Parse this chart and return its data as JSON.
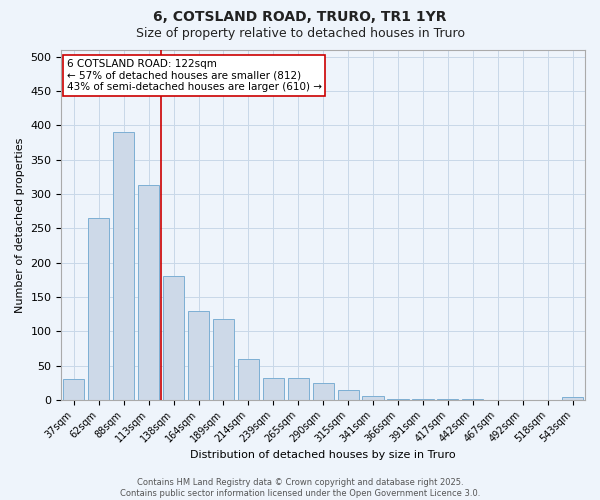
{
  "title1": "6, COTSLAND ROAD, TRURO, TR1 1YR",
  "title2": "Size of property relative to detached houses in Truro",
  "xlabel": "Distribution of detached houses by size in Truro",
  "ylabel": "Number of detached properties",
  "categories": [
    "37sqm",
    "62sqm",
    "88sqm",
    "113sqm",
    "138sqm",
    "164sqm",
    "189sqm",
    "214sqm",
    "239sqm",
    "265sqm",
    "290sqm",
    "315sqm",
    "341sqm",
    "366sqm",
    "391sqm",
    "417sqm",
    "442sqm",
    "467sqm",
    "492sqm",
    "518sqm",
    "543sqm"
  ],
  "values": [
    30,
    265,
    390,
    313,
    181,
    130,
    118,
    60,
    32,
    32,
    24,
    14,
    6,
    1,
    1,
    1,
    1,
    0,
    0,
    0,
    4
  ],
  "bar_color": "#cdd9e8",
  "bar_edge_color": "#7dafd4",
  "grid_color": "#c8d8e8",
  "background_color": "#eef4fb",
  "annotation_text": "6 COTSLAND ROAD: 122sqm\n← 57% of detached houses are smaller (812)\n43% of semi-detached houses are larger (610) →",
  "vline_x": 3.5,
  "vline_color": "#cc0000",
  "ylim": [
    0,
    510
  ],
  "yticks": [
    0,
    50,
    100,
    150,
    200,
    250,
    300,
    350,
    400,
    450,
    500
  ],
  "footer": "Contains HM Land Registry data © Crown copyright and database right 2025.\nContains public sector information licensed under the Open Government Licence 3.0.",
  "annotation_box_color": "#ffffff",
  "annotation_box_edge": "#cc0000",
  "title_fontsize": 10,
  "subtitle_fontsize": 9,
  "axis_label_fontsize": 8,
  "tick_fontsize": 7,
  "ytick_fontsize": 8,
  "footer_fontsize": 6
}
